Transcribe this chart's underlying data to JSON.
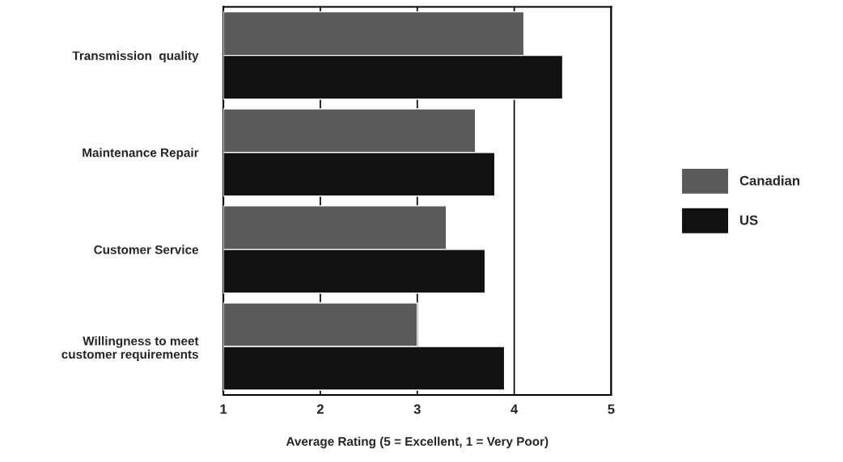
{
  "chart_data": {
    "type": "bar",
    "orientation": "horizontal",
    "categories": [
      "Transmission  quality",
      "Maintenance Repair",
      "Customer Service",
      "Willingness to meet\ncustomer requirements"
    ],
    "series": [
      {
        "name": "Canadian",
        "color": "#5a5a5a",
        "values": [
          4.1,
          3.6,
          3.3,
          3.0
        ]
      },
      {
        "name": "US",
        "color": "#111111",
        "values": [
          4.5,
          3.8,
          3.7,
          3.9
        ]
      }
    ],
    "xlabel": "Average Rating (5 = Excellent, 1 = Very Poor)",
    "xlim": [
      1,
      5
    ],
    "xticks": [
      1,
      2,
      3,
      4,
      5
    ],
    "grid": "x",
    "legend": "right"
  }
}
